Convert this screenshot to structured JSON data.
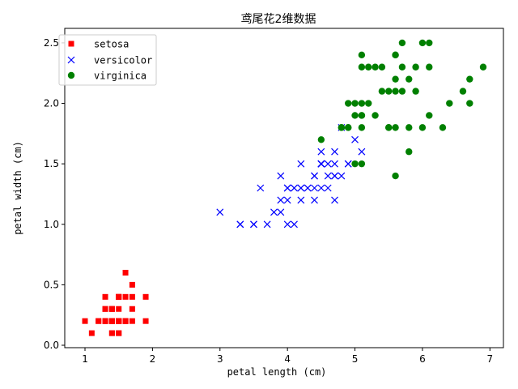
{
  "chart_data": {
    "type": "scatter",
    "title": "鸢尾花2维数据",
    "xlabel": "petal length (cm)",
    "ylabel": "petal width (cm)",
    "xlim": [
      0.7,
      7.2
    ],
    "ylim": [
      -0.02,
      2.62
    ],
    "xticks": [
      1,
      2,
      3,
      4,
      5,
      6,
      7
    ],
    "yticks": [
      0.0,
      0.5,
      1.0,
      1.5,
      2.0,
      2.5
    ],
    "xtick_labels": [
      "1",
      "2",
      "3",
      "4",
      "5",
      "6",
      "7"
    ],
    "ytick_labels": [
      "0.0",
      "0.5",
      "1.0",
      "1.5",
      "2.0",
      "2.5"
    ],
    "grid": false,
    "legend_position": "top-left",
    "series": [
      {
        "name": "setosa",
        "marker": "square",
        "color": "#ff0000",
        "points": [
          [
            1.4,
            0.2
          ],
          [
            1.4,
            0.2
          ],
          [
            1.3,
            0.2
          ],
          [
            1.5,
            0.2
          ],
          [
            1.4,
            0.2
          ],
          [
            1.7,
            0.4
          ],
          [
            1.4,
            0.3
          ],
          [
            1.5,
            0.2
          ],
          [
            1.4,
            0.2
          ],
          [
            1.5,
            0.1
          ],
          [
            1.5,
            0.2
          ],
          [
            1.6,
            0.2
          ],
          [
            1.4,
            0.1
          ],
          [
            1.1,
            0.1
          ],
          [
            1.2,
            0.2
          ],
          [
            1.5,
            0.4
          ],
          [
            1.3,
            0.4
          ],
          [
            1.4,
            0.3
          ],
          [
            1.7,
            0.3
          ],
          [
            1.5,
            0.3
          ],
          [
            1.7,
            0.2
          ],
          [
            1.5,
            0.4
          ],
          [
            1.0,
            0.2
          ],
          [
            1.7,
            0.5
          ],
          [
            1.9,
            0.2
          ],
          [
            1.6,
            0.2
          ],
          [
            1.6,
            0.4
          ],
          [
            1.5,
            0.2
          ],
          [
            1.4,
            0.2
          ],
          [
            1.6,
            0.2
          ],
          [
            1.6,
            0.2
          ],
          [
            1.5,
            0.4
          ],
          [
            1.5,
            0.1
          ],
          [
            1.4,
            0.2
          ],
          [
            1.5,
            0.2
          ],
          [
            1.2,
            0.2
          ],
          [
            1.3,
            0.2
          ],
          [
            1.4,
            0.1
          ],
          [
            1.3,
            0.2
          ],
          [
            1.5,
            0.2
          ],
          [
            1.3,
            0.3
          ],
          [
            1.3,
            0.3
          ],
          [
            1.3,
            0.2
          ],
          [
            1.6,
            0.6
          ],
          [
            1.9,
            0.4
          ],
          [
            1.4,
            0.3
          ],
          [
            1.6,
            0.2
          ],
          [
            1.4,
            0.2
          ],
          [
            1.5,
            0.2
          ],
          [
            1.4,
            0.2
          ]
        ]
      },
      {
        "name": "versicolor",
        "marker": "x",
        "color": "#0000ff",
        "points": [
          [
            4.7,
            1.4
          ],
          [
            4.5,
            1.5
          ],
          [
            4.9,
            1.5
          ],
          [
            4.0,
            1.3
          ],
          [
            4.6,
            1.5
          ],
          [
            4.5,
            1.3
          ],
          [
            4.7,
            1.6
          ],
          [
            3.3,
            1.0
          ],
          [
            4.6,
            1.3
          ],
          [
            3.9,
            1.4
          ],
          [
            3.5,
            1.0
          ],
          [
            4.2,
            1.5
          ],
          [
            4.0,
            1.0
          ],
          [
            4.7,
            1.4
          ],
          [
            3.6,
            1.3
          ],
          [
            4.4,
            1.4
          ],
          [
            4.5,
            1.5
          ],
          [
            4.1,
            1.0
          ],
          [
            4.5,
            1.5
          ],
          [
            3.9,
            1.1
          ],
          [
            4.8,
            1.8
          ],
          [
            4.0,
            1.3
          ],
          [
            4.9,
            1.5
          ],
          [
            4.7,
            1.2
          ],
          [
            4.3,
            1.3
          ],
          [
            4.4,
            1.4
          ],
          [
            4.8,
            1.4
          ],
          [
            5.0,
            1.7
          ],
          [
            4.5,
            1.5
          ],
          [
            3.5,
            1.0
          ],
          [
            3.8,
            1.1
          ],
          [
            3.7,
            1.0
          ],
          [
            3.9,
            1.2
          ],
          [
            5.1,
            1.6
          ],
          [
            4.5,
            1.5
          ],
          [
            4.5,
            1.6
          ],
          [
            4.7,
            1.5
          ],
          [
            4.4,
            1.3
          ],
          [
            4.1,
            1.3
          ],
          [
            4.0,
            1.3
          ],
          [
            4.4,
            1.2
          ],
          [
            4.6,
            1.4
          ],
          [
            4.0,
            1.2
          ],
          [
            3.3,
            1.0
          ],
          [
            4.2,
            1.3
          ],
          [
            4.2,
            1.2
          ],
          [
            4.2,
            1.3
          ],
          [
            4.3,
            1.3
          ],
          [
            3.0,
            1.1
          ],
          [
            4.1,
            1.3
          ]
        ]
      },
      {
        "name": "virginica",
        "marker": "circle",
        "color": "#008000",
        "points": [
          [
            6.0,
            2.5
          ],
          [
            5.1,
            1.9
          ],
          [
            5.9,
            2.1
          ],
          [
            5.6,
            1.8
          ],
          [
            5.8,
            2.2
          ],
          [
            6.6,
            2.1
          ],
          [
            4.5,
            1.7
          ],
          [
            6.3,
            1.8
          ],
          [
            5.8,
            1.8
          ],
          [
            6.1,
            2.5
          ],
          [
            5.1,
            2.0
          ],
          [
            5.3,
            1.9
          ],
          [
            5.5,
            2.1
          ],
          [
            5.0,
            2.0
          ],
          [
            5.1,
            2.4
          ],
          [
            5.3,
            2.3
          ],
          [
            5.5,
            1.8
          ],
          [
            6.7,
            2.2
          ],
          [
            6.9,
            2.3
          ],
          [
            5.0,
            1.5
          ],
          [
            5.7,
            2.3
          ],
          [
            4.9,
            2.0
          ],
          [
            6.7,
            2.0
          ],
          [
            4.9,
            1.8
          ],
          [
            5.7,
            2.1
          ],
          [
            6.0,
            1.8
          ],
          [
            4.8,
            1.8
          ],
          [
            4.9,
            1.8
          ],
          [
            5.6,
            2.1
          ],
          [
            5.8,
            1.6
          ],
          [
            6.1,
            1.9
          ],
          [
            6.4,
            2.0
          ],
          [
            5.6,
            2.2
          ],
          [
            5.1,
            1.5
          ],
          [
            5.6,
            1.4
          ],
          [
            6.1,
            2.3
          ],
          [
            5.6,
            2.4
          ],
          [
            5.5,
            1.8
          ],
          [
            4.8,
            1.8
          ],
          [
            5.4,
            2.1
          ],
          [
            5.6,
            2.4
          ],
          [
            5.1,
            2.3
          ],
          [
            5.1,
            1.9
          ],
          [
            5.9,
            2.3
          ],
          [
            5.7,
            2.5
          ],
          [
            5.2,
            2.3
          ],
          [
            5.0,
            1.9
          ],
          [
            5.2,
            2.0
          ],
          [
            5.4,
            2.3
          ],
          [
            5.1,
            1.8
          ]
        ]
      }
    ]
  }
}
